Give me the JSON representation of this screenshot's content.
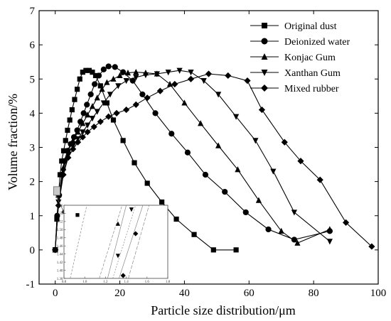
{
  "chart_data": {
    "type": "line",
    "title": "",
    "xlabel": "Particle size distribution/μm",
    "ylabel": "Volume fraction/%",
    "xlim": [
      -5,
      100
    ],
    "ylim": [
      -1,
      7
    ],
    "x_ticks": [
      "0",
      "20",
      "40",
      "60",
      "80",
      "100"
    ],
    "y_ticks": [
      "-1",
      "0",
      "1",
      "2",
      "3",
      "4",
      "5",
      "6",
      "7"
    ],
    "grid": false,
    "legend_position": "top-right",
    "series": [
      {
        "name": "Original dust",
        "marker": "square",
        "x": [
          0.0,
          0.5,
          1.0,
          1.5,
          2.0,
          2.6,
          3.2,
          3.8,
          4.5,
          5.2,
          6.0,
          6.8,
          7.6,
          8.5,
          9.5,
          10.5,
          11.5,
          12.5,
          14.0,
          16.0,
          18.0,
          21.0,
          24.5,
          28.5,
          33.0,
          37.5,
          43.0,
          49.0,
          56.0
        ],
        "y": [
          0.0,
          0.9,
          1.6,
          2.2,
          2.6,
          2.9,
          3.2,
          3.5,
          3.8,
          4.1,
          4.4,
          4.7,
          5.0,
          5.2,
          5.25,
          5.25,
          5.2,
          5.1,
          4.8,
          4.3,
          3.8,
          3.2,
          2.55,
          1.95,
          1.4,
          0.9,
          0.45,
          0.0,
          0.0
        ]
      },
      {
        "name": "Deionized water",
        "marker": "circle",
        "x": [
          0.0,
          0.6,
          1.2,
          2.0,
          2.8,
          3.8,
          4.8,
          5.8,
          6.8,
          7.8,
          8.8,
          9.8,
          11.0,
          12.2,
          13.5,
          15.0,
          16.5,
          18.5,
          21.0,
          24.0,
          27.0,
          31.0,
          36.0,
          41.0,
          46.5,
          52.5,
          59.0,
          66.0,
          74.0,
          85.0
        ],
        "y": [
          0.0,
          1.0,
          1.6,
          2.2,
          2.6,
          2.9,
          3.1,
          3.3,
          3.5,
          3.75,
          4.0,
          4.25,
          4.55,
          4.85,
          5.1,
          5.28,
          5.37,
          5.35,
          5.2,
          4.95,
          4.55,
          4.0,
          3.4,
          2.85,
          2.2,
          1.7,
          1.1,
          0.6,
          0.3,
          0.55
        ]
      },
      {
        "name": "Konjac Gum",
        "marker": "triangle-up",
        "x": [
          0.0,
          1.0,
          2.5,
          4.0,
          5.5,
          7.0,
          8.5,
          10.0,
          11.5,
          13.0,
          14.5,
          16.0,
          18.0,
          20.0,
          22.5,
          25.0,
          28.0,
          31.5,
          35.5,
          40.0,
          45.0,
          50.5,
          56.5,
          63.0,
          70.0,
          75.0,
          85.0
        ],
        "y": [
          0.0,
          1.6,
          2.4,
          2.9,
          3.2,
          3.45,
          3.7,
          3.95,
          4.2,
          4.45,
          4.7,
          4.9,
          5.0,
          5.1,
          5.18,
          5.2,
          5.18,
          5.15,
          4.85,
          4.3,
          3.7,
          3.05,
          2.35,
          1.45,
          0.55,
          0.2,
          0.6
        ]
      },
      {
        "name": "Xanthan Gum",
        "marker": "triangle-down",
        "x": [
          0.0,
          1.0,
          2.5,
          4.0,
          5.5,
          7.0,
          8.5,
          10.0,
          11.5,
          13.0,
          15.0,
          17.0,
          19.5,
          22.0,
          25.0,
          28.0,
          31.5,
          35.0,
          38.5,
          42.0,
          46.0,
          50.5,
          56.0,
          62.0,
          67.5,
          74.0,
          85.0
        ],
        "y": [
          0.0,
          1.4,
          2.3,
          2.8,
          3.05,
          3.25,
          3.45,
          3.65,
          3.85,
          4.05,
          4.3,
          4.55,
          4.8,
          4.95,
          5.05,
          5.12,
          5.15,
          5.2,
          5.25,
          5.2,
          4.95,
          4.55,
          3.9,
          3.2,
          2.3,
          1.1,
          0.25
        ]
      },
      {
        "name": "Mixed rubber",
        "marker": "diamond",
        "x": [
          0.0,
          1.0,
          2.5,
          4.0,
          5.5,
          7.0,
          8.5,
          10.0,
          12.0,
          14.0,
          16.5,
          19.0,
          22.0,
          25.0,
          28.5,
          32.5,
          37.0,
          42.0,
          47.5,
          53.5,
          59.5,
          64.0,
          71.0,
          76.0,
          82.0,
          90.0,
          98.0
        ],
        "y": [
          0.0,
          1.3,
          2.2,
          2.7,
          2.95,
          3.15,
          3.3,
          3.45,
          3.6,
          3.75,
          3.9,
          4.0,
          4.1,
          4.25,
          4.45,
          4.65,
          4.85,
          5.0,
          5.15,
          5.1,
          4.95,
          4.1,
          3.15,
          2.6,
          2.05,
          0.8,
          0.1
        ]
      }
    ],
    "inset": {
      "x_ticks": [
        "0.8",
        "1.0",
        "1.2",
        "1.4",
        "1.6",
        "1.8"
      ],
      "y_ticks": [
        "1.38",
        "1.40",
        "1.42",
        "1.44",
        "1.46",
        "1.48",
        "1.50",
        "1.52",
        "1.54",
        "1.56"
      ],
      "xlim": [
        0.8,
        1.8
      ],
      "ylim": [
        1.38,
        1.56
      ],
      "points": [
        {
          "series": "Original dust",
          "x": 0.93,
          "y": 1.536
        },
        {
          "series": "Konjac Gum",
          "x": 1.32,
          "y": 1.514
        },
        {
          "series": "Xanthan Gum",
          "x": 1.45,
          "y": 1.55
        },
        {
          "series": "Xanthan Gum",
          "x": 1.32,
          "y": 1.436
        },
        {
          "series": "Mixed rubber",
          "x": 1.49,
          "y": 1.49
        },
        {
          "series": "Mixed rubber",
          "x": 1.37,
          "y": 1.387
        },
        {
          "series": "Deionized water",
          "x": 1.2,
          "y": 1.5
        }
      ]
    }
  }
}
